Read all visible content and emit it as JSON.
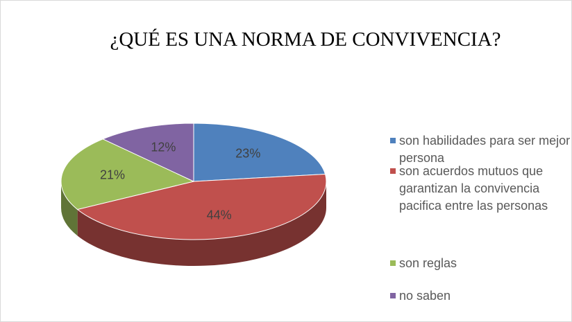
{
  "chart_data": {
    "type": "pie",
    "title": "¿QUÉ ES UNA NORMA DE CONVIVENCIA?",
    "categories": [
      "son habilidades para ser mejor persona",
      "son acuerdos mutuos que garantizan la convivencia pacifica entre las personas",
      "son reglas",
      "no saben"
    ],
    "values": [
      23,
      44,
      21,
      12
    ],
    "value_labels": [
      "23%",
      "44%",
      "21%",
      "12%"
    ],
    "colors": [
      "#4f81bd",
      "#c0504d",
      "#9bbb59",
      "#8064a2"
    ],
    "legend": "right"
  }
}
